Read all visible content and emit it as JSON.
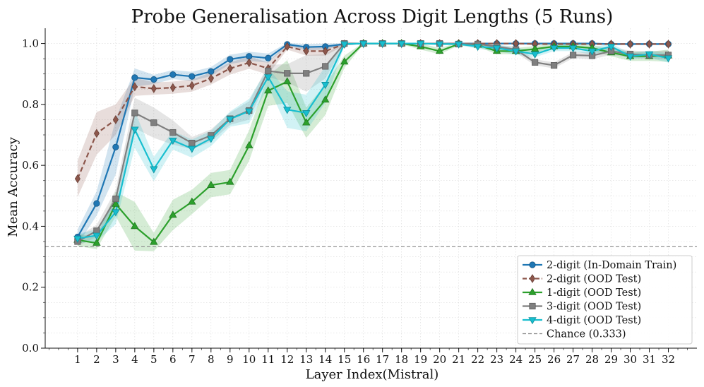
{
  "chart_data": {
    "type": "line",
    "title": "Probe Generalisation Across Digit Lengths (5 Runs)",
    "xlabel": "Layer Index(Mistral)",
    "ylabel": "Mean Accuracy",
    "xlim": [
      -0.7,
      33.5
    ],
    "ylim": [
      0.0,
      1.05
    ],
    "x": [
      1,
      2,
      3,
      4,
      5,
      6,
      7,
      8,
      9,
      10,
      11,
      12,
      13,
      14,
      15,
      16,
      17,
      18,
      19,
      20,
      21,
      22,
      23,
      24,
      25,
      26,
      27,
      28,
      29,
      30,
      31,
      32
    ],
    "x_tick_labels": [
      "1",
      "2",
      "3",
      "4",
      "5",
      "6",
      "7",
      "8",
      "9",
      "10",
      "11",
      "12",
      "13",
      "14",
      "15",
      "16",
      "17",
      "18",
      "19",
      "20",
      "21",
      "22",
      "23",
      "24",
      "25",
      "26",
      "27",
      "28",
      "29",
      "30",
      "31",
      "32"
    ],
    "y_ticks": [
      0.0,
      0.2,
      0.4,
      0.6,
      0.8,
      1.0
    ],
    "y_tick_labels": [
      "0.0",
      "0.2",
      "0.4",
      "0.6",
      "0.8",
      "1.0"
    ],
    "grid": true,
    "legend_position": "bottom-right",
    "series": [
      {
        "name": "2-digit (In-Domain Train)",
        "color": "#1f77b4",
        "linestyle": "solid",
        "marker": "circle",
        "values": [
          0.365,
          0.475,
          0.66,
          0.888,
          0.882,
          0.898,
          0.892,
          0.908,
          0.948,
          0.958,
          0.952,
          0.997,
          0.988,
          0.99,
          0.998,
          1.0,
          1.0,
          1.0,
          1.0,
          1.0,
          1.0,
          1.0,
          1.0,
          1.0,
          1.0,
          1.0,
          1.0,
          1.0,
          0.998,
          0.998,
          0.998,
          0.998
        ],
        "band": [
          0.025,
          0.04,
          0.09,
          0.03,
          0.015,
          0.015,
          0.015,
          0.015,
          0.015,
          0.015,
          0.015,
          0.005,
          0.01,
          0.01,
          0.003,
          0.002,
          0.002,
          0.002,
          0.002,
          0.002,
          0.002,
          0.002,
          0.002,
          0.002,
          0.002,
          0.002,
          0.002,
          0.002,
          0.003,
          0.003,
          0.003,
          0.003
        ]
      },
      {
        "name": "2-digit (OOD Test)",
        "color": "#8c564b",
        "linestyle": "dashed",
        "marker": "diamond",
        "values": [
          0.556,
          0.705,
          0.75,
          0.858,
          0.852,
          0.855,
          0.862,
          0.885,
          0.918,
          0.937,
          0.918,
          0.99,
          0.975,
          0.975,
          0.998,
          1.0,
          1.0,
          1.0,
          1.0,
          1.0,
          1.0,
          1.0,
          1.0,
          1.0,
          0.998,
          0.998,
          0.998,
          0.998,
          0.998,
          0.998,
          0.998,
          0.998
        ],
        "band": [
          0.06,
          0.07,
          0.05,
          0.03,
          0.02,
          0.02,
          0.02,
          0.02,
          0.02,
          0.02,
          0.02,
          0.01,
          0.015,
          0.015,
          0.004,
          0.002,
          0.002,
          0.002,
          0.002,
          0.002,
          0.002,
          0.002,
          0.002,
          0.002,
          0.003,
          0.003,
          0.003,
          0.003,
          0.003,
          0.003,
          0.003,
          0.003
        ]
      },
      {
        "name": "1-digit (OOD Test)",
        "color": "#2ca02c",
        "linestyle": "solid",
        "marker": "triangle-up",
        "values": [
          0.355,
          0.345,
          0.473,
          0.4,
          0.348,
          0.437,
          0.48,
          0.535,
          0.545,
          0.665,
          0.845,
          0.875,
          0.74,
          0.815,
          0.94,
          1.0,
          1.0,
          1.0,
          0.99,
          0.975,
          0.998,
          0.995,
          0.975,
          0.975,
          0.982,
          0.99,
          0.99,
          0.985,
          0.97,
          0.958,
          0.958,
          0.96
        ],
        "band": [
          0.02,
          0.02,
          0.04,
          0.08,
          0.03,
          0.05,
          0.04,
          0.04,
          0.04,
          0.05,
          0.05,
          0.07,
          0.05,
          0.05,
          0.02,
          0.003,
          0.003,
          0.003,
          0.01,
          0.01,
          0.005,
          0.006,
          0.01,
          0.01,
          0.01,
          0.008,
          0.008,
          0.01,
          0.012,
          0.015,
          0.015,
          0.02
        ]
      },
      {
        "name": "3-digit (OOD Test)",
        "color": "#7f7f7f",
        "linestyle": "solid",
        "marker": "square",
        "values": [
          0.35,
          0.385,
          0.49,
          0.772,
          0.74,
          0.708,
          0.673,
          0.698,
          0.753,
          0.78,
          0.91,
          0.902,
          0.902,
          0.925,
          1.0,
          1.0,
          1.0,
          1.0,
          1.0,
          1.0,
          0.998,
          0.998,
          0.99,
          0.98,
          0.938,
          0.928,
          0.962,
          0.96,
          0.975,
          0.965,
          0.962,
          0.962
        ],
        "band": [
          0.015,
          0.02,
          0.03,
          0.05,
          0.05,
          0.04,
          0.02,
          0.02,
          0.02,
          0.03,
          0.02,
          0.03,
          0.06,
          0.04,
          0.005,
          0.002,
          0.002,
          0.002,
          0.002,
          0.002,
          0.003,
          0.003,
          0.005,
          0.01,
          0.01,
          0.01,
          0.01,
          0.012,
          0.012,
          0.012,
          0.012,
          0.015
        ]
      },
      {
        "name": "4-digit (OOD Test)",
        "color": "#17becf",
        "linestyle": "solid",
        "marker": "triangle-down",
        "values": [
          0.36,
          0.37,
          0.447,
          0.718,
          0.588,
          0.682,
          0.655,
          0.688,
          0.752,
          0.778,
          0.89,
          0.783,
          0.772,
          0.865,
          0.998,
          1.0,
          1.0,
          1.0,
          1.0,
          0.998,
          0.998,
          0.99,
          0.985,
          0.975,
          0.965,
          0.985,
          0.985,
          0.975,
          0.99,
          0.958,
          0.965,
          0.952
        ],
        "band": [
          0.015,
          0.02,
          0.04,
          0.06,
          0.04,
          0.03,
          0.03,
          0.025,
          0.025,
          0.04,
          0.03,
          0.06,
          0.06,
          0.06,
          0.004,
          0.002,
          0.002,
          0.002,
          0.002,
          0.003,
          0.003,
          0.008,
          0.01,
          0.012,
          0.01,
          0.01,
          0.01,
          0.012,
          0.01,
          0.01,
          0.012,
          0.015
        ]
      }
    ],
    "reference_line": {
      "name": "Chance (0.333)",
      "value": 0.333,
      "color": "#888888",
      "linestyle": "dashed"
    }
  }
}
